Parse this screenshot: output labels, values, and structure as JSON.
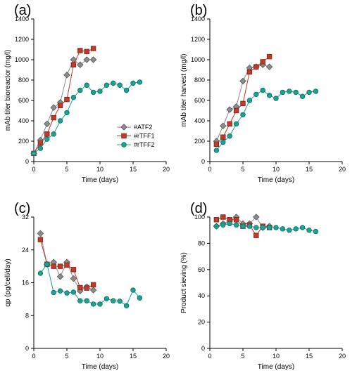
{
  "colors": {
    "ATF2": "#8c8c8c",
    "rTFF1": "#c0392b",
    "rTFF2": "#1aa394",
    "ATF2_stroke": "#555555",
    "rTFF1_stroke": "#7a2418",
    "rTFF2_stroke": "#0c6b60"
  },
  "legend": [
    "#ATF2",
    "#rTFF1",
    "#rTFF2"
  ],
  "chart_data": [
    {
      "panel": "(a)",
      "type": "line",
      "xlabel": "Time (days)",
      "ylabel": "mAb titer bioreactor (mg/l)",
      "xlim": [
        0,
        20
      ],
      "ylim": [
        0,
        1400
      ],
      "xticks": [
        0,
        5,
        10,
        15,
        20
      ],
      "yticks": [
        0,
        200,
        400,
        600,
        800,
        1000,
        1200,
        1400
      ],
      "legend_position": "lower-right",
      "series": [
        {
          "name": "#ATF2",
          "marker": "diamond",
          "x": [
            0,
            1,
            2,
            3,
            4,
            5,
            6,
            7,
            8,
            9
          ],
          "y": [
            80,
            210,
            370,
            530,
            580,
            850,
            1000,
            950,
            1000,
            1000
          ]
        },
        {
          "name": "#rTFF1",
          "marker": "square",
          "x": [
            0,
            1,
            2,
            3,
            4,
            5,
            6,
            7,
            8,
            9
          ],
          "y": [
            80,
            180,
            270,
            430,
            550,
            610,
            950,
            1090,
            1080,
            1110
          ]
        },
        {
          "name": "#rTFF2",
          "marker": "circle",
          "x": [
            0,
            1,
            2,
            3,
            4,
            5,
            6,
            7,
            8,
            9,
            10,
            11,
            12,
            13,
            14,
            15,
            16
          ],
          "y": [
            80,
            130,
            220,
            270,
            400,
            480,
            630,
            700,
            750,
            680,
            690,
            750,
            770,
            750,
            700,
            770,
            780
          ]
        }
      ]
    },
    {
      "panel": "(b)",
      "type": "line",
      "xlabel": "Time (days)",
      "ylabel": "mAb titer harvest (mg/l)",
      "xlim": [
        0,
        20
      ],
      "ylim": [
        0,
        1400
      ],
      "xticks": [
        0,
        5,
        10,
        15,
        20
      ],
      "yticks": [
        0,
        200,
        400,
        600,
        800,
        1000,
        1200,
        1400
      ],
      "series": [
        {
          "name": "#ATF2",
          "marker": "diamond",
          "x": [
            1,
            2,
            3,
            4,
            5,
            6,
            7,
            8,
            9
          ],
          "y": [
            200,
            350,
            510,
            540,
            790,
            920,
            930,
            950,
            930
          ]
        },
        {
          "name": "#rTFF1",
          "marker": "square",
          "x": [
            1,
            2,
            3,
            4,
            5,
            6,
            7,
            8,
            9
          ],
          "y": [
            170,
            240,
            370,
            500,
            570,
            880,
            930,
            980,
            1030
          ]
        },
        {
          "name": "#rTFF2",
          "marker": "circle",
          "x": [
            1,
            2,
            3,
            4,
            5,
            6,
            7,
            8,
            9,
            10,
            11,
            12,
            13,
            14,
            15,
            16
          ],
          "y": [
            110,
            190,
            250,
            370,
            460,
            600,
            660,
            700,
            650,
            620,
            680,
            690,
            680,
            640,
            680,
            690
          ]
        }
      ]
    },
    {
      "panel": "(c)",
      "type": "line",
      "xlabel": "Time (days)",
      "ylabel": "qp (pg/cell/day)",
      "xlim": [
        0,
        20
      ],
      "ylim": [
        0,
        32
      ],
      "xticks": [
        0,
        5,
        10,
        15,
        20
      ],
      "yticks": [
        0,
        8,
        16,
        24,
        32
      ],
      "series": [
        {
          "name": "#ATF2",
          "marker": "diamond",
          "x": [
            1,
            2,
            3,
            4,
            5,
            6,
            7,
            8,
            9
          ],
          "y": [
            28,
            20.5,
            21,
            17.5,
            21,
            17,
            14,
            15,
            14.2
          ]
        },
        {
          "name": "#rTFF1",
          "marker": "square",
          "x": [
            1,
            2,
            3,
            4,
            5,
            6,
            7,
            8,
            9
          ],
          "y": [
            26.5,
            20.5,
            20,
            20,
            20.3,
            19.2,
            14.8,
            14.7,
            15.5
          ]
        },
        {
          "name": "#rTFF2",
          "marker": "circle",
          "x": [
            1,
            2,
            3,
            4,
            5,
            6,
            7,
            8,
            9,
            10,
            11,
            12,
            13,
            14,
            15,
            16
          ],
          "y": [
            18.3,
            20.5,
            13.6,
            14,
            13.5,
            13.7,
            11.6,
            11.6,
            10.8,
            10.8,
            12.1,
            11.6,
            11.5,
            10.4,
            14.2,
            12.3
          ]
        }
      ]
    },
    {
      "panel": "(d)",
      "type": "line",
      "xlabel": "Time (days)",
      "ylabel": "Product sieving (%)",
      "xlim": [
        0,
        20
      ],
      "ylim": [
        0,
        100
      ],
      "xticks": [
        0,
        5,
        10,
        15,
        20
      ],
      "yticks": [
        0,
        20,
        40,
        60,
        80,
        100
      ],
      "series": [
        {
          "name": "#ATF2",
          "marker": "diamond",
          "x": [
            1,
            2,
            3,
            4,
            5,
            6,
            7,
            8,
            9
          ],
          "y": [
            93,
            95,
            97,
            100,
            95,
            95,
            100,
            92,
            93
          ]
        },
        {
          "name": "#rTFF1",
          "marker": "square",
          "x": [
            1,
            2,
            3,
            4,
            5,
            6,
            7,
            8,
            9
          ],
          "y": [
            98,
            100,
            98,
            98,
            93,
            94,
            86,
            93,
            92
          ]
        },
        {
          "name": "#rTFF2",
          "marker": "circle",
          "x": [
            1,
            2,
            3,
            4,
            5,
            6,
            7,
            8,
            9,
            10,
            11,
            12,
            13,
            14,
            15,
            16
          ],
          "y": [
            93,
            94,
            95,
            94,
            93,
            93,
            92,
            92,
            92,
            92,
            91,
            90,
            91,
            92,
            90,
            89
          ]
        }
      ]
    }
  ]
}
